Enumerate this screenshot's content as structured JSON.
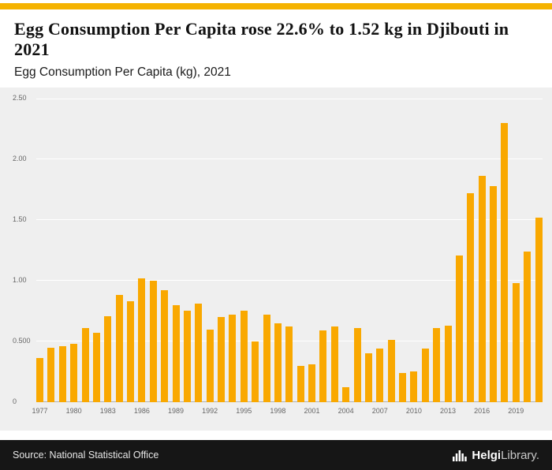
{
  "accent_color": "#F5B300",
  "header": {
    "title": "Egg Consumption Per Capita rose 22.6% to 1.52 kg in Djibouti in 2021",
    "subtitle": "Egg Consumption Per Capita (kg), 2021"
  },
  "chart_data": {
    "type": "bar",
    "title": "Egg Consumption Per Capita rose 22.6% to 1.52 kg in Djibouti in 2021",
    "subtitle": "Egg Consumption Per Capita (kg), 2021",
    "categories": [
      1977,
      1978,
      1979,
      1980,
      1981,
      1982,
      1983,
      1984,
      1985,
      1986,
      1987,
      1988,
      1989,
      1990,
      1991,
      1992,
      1993,
      1994,
      1995,
      1996,
      1997,
      1998,
      1999,
      2000,
      2001,
      2002,
      2003,
      2004,
      2005,
      2006,
      2007,
      2008,
      2009,
      2010,
      2011,
      2012,
      2013,
      2014,
      2015,
      2016,
      2017,
      2018,
      2019,
      2020,
      2021
    ],
    "values": [
      0.36,
      0.45,
      0.46,
      0.48,
      0.61,
      0.57,
      0.71,
      0.88,
      0.83,
      1.02,
      1.0,
      0.92,
      0.8,
      0.75,
      0.81,
      0.6,
      0.7,
      0.72,
      0.75,
      0.5,
      0.72,
      0.65,
      0.62,
      0.3,
      0.31,
      0.59,
      0.62,
      0.12,
      0.61,
      0.4,
      0.44,
      0.51,
      0.24,
      0.25,
      0.44,
      0.61,
      0.63,
      1.21,
      1.72,
      1.86,
      1.78,
      2.3,
      0.98,
      1.24,
      1.52
    ],
    "xlabel": "",
    "ylabel": "",
    "ylim": [
      0,
      2.5
    ],
    "yticks": [
      0,
      0.5,
      1.0,
      1.5,
      2.0,
      2.5
    ],
    "ytick_labels": [
      "0",
      "0.500",
      "1.00",
      "1.50",
      "2.00",
      "2.50"
    ],
    "xtick_labels": [
      "1977",
      "1980",
      "1983",
      "1986",
      "1989",
      "1992",
      "1995",
      "1998",
      "2001",
      "2004",
      "2007",
      "2010",
      "2013",
      "2016",
      "2019"
    ],
    "xtick_every": 3,
    "bar_color": "#F9A800",
    "plot_bg": "#EFEFEF",
    "grid_color": "#FFFFFF",
    "axis_color": "#B0B0B0",
    "grid": true,
    "legend": false
  },
  "footer": {
    "source": "Source: National Statistical Office",
    "logo_bold": "Helgi",
    "logo_rest": "Library",
    "logo_dot": "."
  }
}
